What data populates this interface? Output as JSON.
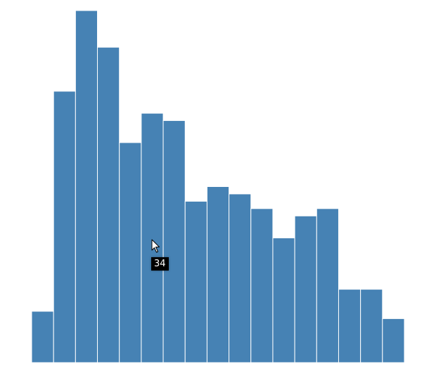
{
  "colors": {
    "bar": "#4682b4",
    "tooltip_bg": "#000000",
    "tooltip_text": "#ffffff"
  },
  "chart_data": {
    "type": "bar",
    "title": "",
    "xlabel": "",
    "ylabel": "",
    "grid": false,
    "legend": "none",
    "axes_visible": false,
    "ylim": [
      0,
      48
    ],
    "values": [
      7,
      37,
      48,
      43,
      30,
      34,
      33,
      22,
      24,
      23,
      21,
      17,
      20,
      21,
      10,
      10,
      6
    ]
  },
  "tooltip": {
    "text": "34",
    "bar_index": 6
  },
  "cursor": {
    "icon": "arrow-pointer-icon"
  }
}
